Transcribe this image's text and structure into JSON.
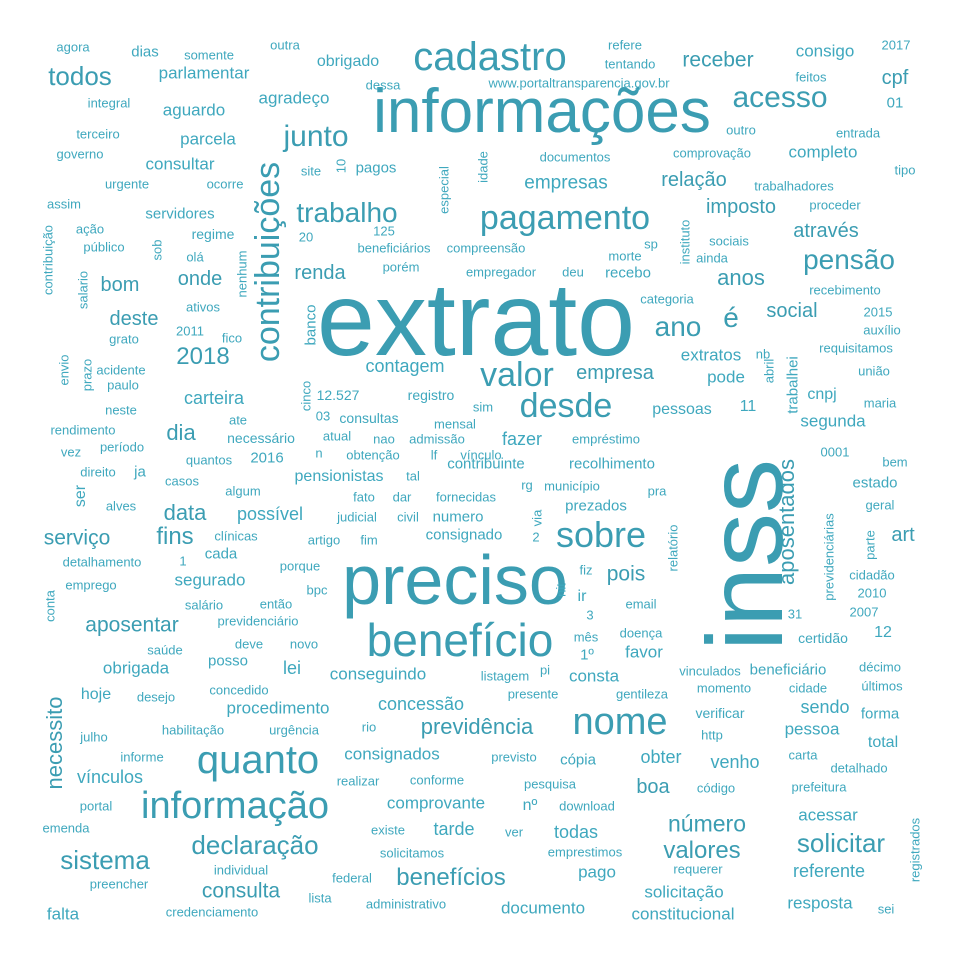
{
  "colors": {
    "light": "#3FA8BE",
    "dark": "#3B9DB2"
  },
  "words": [
    {
      "text": "extrato",
      "weight": 100
    },
    {
      "text": "inss",
      "weight": 90
    },
    {
      "text": "preciso",
      "weight": 70
    },
    {
      "text": "informações",
      "weight": 60
    },
    {
      "text": "benefício",
      "weight": 45
    },
    {
      "text": "cadastro",
      "weight": 40
    },
    {
      "text": "informação",
      "weight": 38
    },
    {
      "text": "quanto",
      "weight": 38
    },
    {
      "text": "nome",
      "weight": 36
    },
    {
      "text": "contribuições",
      "weight": 34
    },
    {
      "text": "pagamento",
      "weight": 33
    },
    {
      "text": "sobre",
      "weight": 33
    },
    {
      "text": "desde",
      "weight": 30
    },
    {
      "text": "valor",
      "weight": 30
    },
    {
      "text": "acesso",
      "weight": 29
    },
    {
      "text": "junto",
      "weight": 28
    },
    {
      "text": "trabalho",
      "weight": 27
    },
    {
      "text": "pensão",
      "weight": 27
    },
    {
      "text": "ano",
      "weight": 27
    },
    {
      "text": "todos",
      "weight": 25
    },
    {
      "text": "solicitar",
      "weight": 25
    },
    {
      "text": "declaração",
      "weight": 24
    },
    {
      "text": "sistema",
      "weight": 23
    },
    {
      "text": "valores",
      "weight": 23
    },
    {
      "text": "número",
      "weight": 22
    },
    {
      "text": "benefícios",
      "weight": 22
    },
    {
      "text": "previdência",
      "weight": 21
    },
    {
      "text": "aposentados",
      "weight": 20
    },
    {
      "text": "necessito",
      "weight": 20
    },
    {
      "text": "receber",
      "weight": 20
    },
    {
      "text": "é",
      "weight": 27
    },
    {
      "text": "2018",
      "weight": 22
    },
    {
      "text": "dia",
      "weight": 20
    },
    {
      "text": "data",
      "weight": 20
    },
    {
      "text": "fins",
      "weight": 20
    },
    {
      "text": "serviço",
      "weight": 18
    },
    {
      "text": "aposentar",
      "weight": 18
    },
    {
      "text": "pois",
      "weight": 18
    },
    {
      "text": "consulta",
      "weight": 18
    },
    {
      "text": "imposto",
      "weight": 17
    },
    {
      "text": "relação",
      "weight": 17
    },
    {
      "text": "empresas",
      "weight": 16
    },
    {
      "text": "empresa",
      "weight": 16
    },
    {
      "text": "renda",
      "weight": 16
    },
    {
      "text": "anos",
      "weight": 18
    },
    {
      "text": "social",
      "weight": 16
    },
    {
      "text": "através",
      "weight": 16
    },
    {
      "text": "onde",
      "weight": 16
    },
    {
      "text": "bom",
      "weight": 16
    },
    {
      "text": "deste",
      "weight": 16
    },
    {
      "text": "carteira",
      "weight": 15
    },
    {
      "text": "contagem",
      "weight": 15
    },
    {
      "text": "fazer",
      "weight": 15
    },
    {
      "text": "possível",
      "weight": 14
    },
    {
      "text": "segunda",
      "weight": 14
    },
    {
      "text": "extratos",
      "weight": 14
    },
    {
      "text": "pode",
      "weight": 14
    },
    {
      "text": "cpf",
      "weight": 16
    },
    {
      "text": "agradeço",
      "weight": 14
    },
    {
      "text": "obrigado",
      "weight": 13
    },
    {
      "text": "aguardo",
      "weight": 14
    },
    {
      "text": "parcela",
      "weight": 14
    },
    {
      "text": "consultar",
      "weight": 14
    },
    {
      "text": "parlamentar",
      "weight": 14
    },
    {
      "text": "consigo",
      "weight": 14
    },
    {
      "text": "completo",
      "weight": 14
    },
    {
      "text": "segurado",
      "weight": 14
    },
    {
      "text": "concessão",
      "weight": 15
    },
    {
      "text": "procedimento",
      "weight": 14
    },
    {
      "text": "conseguindo",
      "weight": 14
    },
    {
      "text": "lei",
      "weight": 15
    },
    {
      "text": "consta",
      "weight": 14
    },
    {
      "text": "favor",
      "weight": 14
    },
    {
      "text": "sendo",
      "weight": 15
    },
    {
      "text": "pessoa",
      "weight": 14
    },
    {
      "text": "obter",
      "weight": 15
    },
    {
      "text": "venho",
      "weight": 15
    },
    {
      "text": "boa",
      "weight": 16
    },
    {
      "text": "vínculos",
      "weight": 15
    },
    {
      "text": "comprovante",
      "weight": 14
    },
    {
      "text": "tarde",
      "weight": 15
    },
    {
      "text": "todas",
      "weight": 15
    },
    {
      "text": "referente",
      "weight": 15
    },
    {
      "text": "consignados",
      "weight": 14
    },
    {
      "text": "acessar",
      "weight": 14
    },
    {
      "text": "pago",
      "weight": 14
    },
    {
      "text": "solicitação",
      "weight": 14
    },
    {
      "text": "documento",
      "weight": 14
    },
    {
      "text": "constitucional",
      "weight": 14
    },
    {
      "text": "resposta",
      "weight": 14
    },
    {
      "text": "falta",
      "weight": 14
    },
    {
      "text": "art",
      "weight": 15
    },
    {
      "text": "obrigada",
      "weight": 14
    },
    {
      "text": "hoje",
      "weight": 14
    },
    {
      "text": "posso",
      "weight": 13
    },
    {
      "text": "ir",
      "weight": 14
    },
    {
      "text": "contribuinte",
      "weight": 12
    },
    {
      "text": "recolhimento",
      "weight": 12
    },
    {
      "text": "numero",
      "weight": 12
    },
    {
      "text": "consignado",
      "weight": 12
    },
    {
      "text": "prezados",
      "weight": 12
    },
    {
      "text": "pensionistas",
      "weight": 13
    },
    {
      "text": "necessário",
      "weight": 12
    },
    {
      "text": "2016",
      "weight": 12
    },
    {
      "text": "11",
      "weight": 13
    },
    {
      "text": "12",
      "weight": 13
    },
    {
      "text": "12.527",
      "weight": 11
    },
    {
      "text": "registro",
      "weight": 11
    },
    {
      "text": "consultas",
      "weight": 11
    },
    {
      "text": "estado",
      "weight": 12
    },
    {
      "text": "cnpj",
      "weight": 13
    },
    {
      "text": "trabalhei",
      "weight": 12
    },
    {
      "text": "pessoas",
      "weight": 13
    },
    {
      "text": "banco",
      "weight": 12
    },
    {
      "text": "beneficiário",
      "weight": 12
    },
    {
      "text": "verificar",
      "weight": 12
    },
    {
      "text": "forma",
      "weight": 12
    },
    {
      "text": "total",
      "weight": 12
    },
    {
      "text": "cópia",
      "weight": 12
    },
    {
      "text": "certidão",
      "weight": 12
    },
    {
      "text": "01",
      "weight": 12
    },
    {
      "text": "www.portaltransparencia.gov.br",
      "weight": 10
    },
    {
      "text": "agora",
      "weight": 10
    },
    {
      "text": "dias",
      "weight": 12
    },
    {
      "text": "somente",
      "weight": 10
    },
    {
      "text": "outra",
      "weight": 10
    },
    {
      "text": "dessa",
      "weight": 10
    },
    {
      "text": "refere",
      "weight": 10
    },
    {
      "text": "tentando",
      "weight": 10
    },
    {
      "text": "2017",
      "weight": 10
    },
    {
      "text": "feitos",
      "weight": 10
    },
    {
      "text": "integral",
      "weight": 10
    },
    {
      "text": "terceiro",
      "weight": 10
    },
    {
      "text": "governo",
      "weight": 10
    },
    {
      "text": "urgente",
      "weight": 10
    },
    {
      "text": "ocorre",
      "weight": 10
    },
    {
      "text": "site",
      "weight": 10
    },
    {
      "text": "pagos",
      "weight": 11
    },
    {
      "text": "documentos",
      "weight": 10
    },
    {
      "text": "comprovação",
      "weight": 10
    },
    {
      "text": "tipo",
      "weight": 10
    },
    {
      "text": "outro",
      "weight": 10
    },
    {
      "text": "entrada",
      "weight": 10
    },
    {
      "text": "assim",
      "weight": 10
    },
    {
      "text": "ação",
      "weight": 10
    },
    {
      "text": "público",
      "weight": 10
    },
    {
      "text": "servidores",
      "weight": 12
    },
    {
      "text": "regime",
      "weight": 11
    },
    {
      "text": "olá",
      "weight": 10
    },
    {
      "text": "20",
      "weight": 10
    },
    {
      "text": "beneficiários",
      "weight": 10
    },
    {
      "text": "compreensão",
      "weight": 10
    },
    {
      "text": "sp",
      "weight": 10
    },
    {
      "text": "sociais",
      "weight": 10
    },
    {
      "text": "ainda",
      "weight": 10
    },
    {
      "text": "trabalhadores",
      "weight": 10
    },
    {
      "text": "proceder",
      "weight": 10
    },
    {
      "text": "morte",
      "weight": 10
    },
    {
      "text": "porém",
      "weight": 10
    },
    {
      "text": "empregador",
      "weight": 10
    },
    {
      "text": "deu",
      "weight": 10
    },
    {
      "text": "recebo",
      "weight": 11
    },
    {
      "text": "instituto",
      "weight": 10
    },
    {
      "text": "categoria",
      "weight": 10
    },
    {
      "text": "recebimento",
      "weight": 10
    },
    {
      "text": "2015",
      "weight": 10
    },
    {
      "text": "auxílio",
      "weight": 10
    },
    {
      "text": "requisitamos",
      "weight": 10
    },
    {
      "text": "ativos",
      "weight": 10
    },
    {
      "text": "2011",
      "weight": 10
    },
    {
      "text": "fico",
      "weight": 10
    },
    {
      "text": "grato",
      "weight": 10
    },
    {
      "text": "acidente",
      "weight": 10
    },
    {
      "text": "paulo",
      "weight": 10
    },
    {
      "text": "neste",
      "weight": 10
    },
    {
      "text": "rendimento",
      "weight": 10
    },
    {
      "text": "período",
      "weight": 10
    },
    {
      "text": "vez",
      "weight": 10
    },
    {
      "text": "direito",
      "weight": 10
    },
    {
      "text": "ja",
      "weight": 11
    },
    {
      "text": "casos",
      "weight": 10
    },
    {
      "text": "alves",
      "weight": 10
    },
    {
      "text": "quantos",
      "weight": 10
    },
    {
      "text": "algum",
      "weight": 10
    },
    {
      "text": "ate",
      "weight": 10
    },
    {
      "text": "atual",
      "weight": 10
    },
    {
      "text": "nao",
      "weight": 10
    },
    {
      "text": "admissão",
      "weight": 10
    },
    {
      "text": "empréstimo",
      "weight": 10
    },
    {
      "text": "mensal",
      "weight": 10
    },
    {
      "text": "sim",
      "weight": 10
    },
    {
      "text": "03",
      "weight": 10
    },
    {
      "text": "obtenção",
      "weight": 10
    },
    {
      "text": "tal",
      "weight": 10
    },
    {
      "text": "lf",
      "weight": 10
    },
    {
      "text": "vínculo",
      "weight": 10
    },
    {
      "text": "fato",
      "weight": 10
    },
    {
      "text": "dar",
      "weight": 10
    },
    {
      "text": "fornecidas",
      "weight": 10
    },
    {
      "text": "judicial",
      "weight": 10
    },
    {
      "text": "civil",
      "weight": 10
    },
    {
      "text": "rg",
      "weight": 10
    },
    {
      "text": "município",
      "weight": 10
    },
    {
      "text": "pra",
      "weight": 10
    },
    {
      "text": "geral",
      "weight": 10
    },
    {
      "text": "bem",
      "weight": 10
    },
    {
      "text": "0001",
      "weight": 10
    },
    {
      "text": "maria",
      "weight": 10
    },
    {
      "text": "união",
      "weight": 10
    },
    {
      "text": "clínicas",
      "weight": 10
    },
    {
      "text": "artigo",
      "weight": 10
    },
    {
      "text": "fim",
      "weight": 10
    },
    {
      "text": "cada",
      "weight": 11
    },
    {
      "text": "detalhamento",
      "weight": 10
    },
    {
      "text": "emprego",
      "weight": 10
    },
    {
      "text": "porque",
      "weight": 10
    },
    {
      "text": "bpc",
      "weight": 10
    },
    {
      "text": "salário",
      "weight": 10
    },
    {
      "text": "então",
      "weight": 10
    },
    {
      "text": "previdenciário",
      "weight": 10
    },
    {
      "text": "deve",
      "weight": 10
    },
    {
      "text": "novo",
      "weight": 10
    },
    {
      "text": "saúde",
      "weight": 10
    },
    {
      "text": "mês",
      "weight": 10
    },
    {
      "text": "doença",
      "weight": 10
    },
    {
      "text": "email",
      "weight": 10
    },
    {
      "text": "31",
      "weight": 10
    },
    {
      "text": "2007",
      "weight": 10
    },
    {
      "text": "2010",
      "weight": 10
    },
    {
      "text": "cidadão",
      "weight": 10
    },
    {
      "text": "parte",
      "weight": 10
    },
    {
      "text": "previdenciárias",
      "weight": 10
    },
    {
      "text": "fiz",
      "weight": 10
    },
    {
      "text": "3",
      "weight": 10
    },
    {
      "text": "1º",
      "weight": 12
    },
    {
      "text": "listagem",
      "weight": 10
    },
    {
      "text": "pi",
      "weight": 10
    },
    {
      "text": "vinculados",
      "weight": 10
    },
    {
      "text": "décimo",
      "weight": 10
    },
    {
      "text": "momento",
      "weight": 10
    },
    {
      "text": "cidade",
      "weight": 10
    },
    {
      "text": "últimos",
      "weight": 10
    },
    {
      "text": "gentileza",
      "weight": 10
    },
    {
      "text": "presente",
      "weight": 10
    },
    {
      "text": "concedido",
      "weight": 10
    },
    {
      "text": "desejo",
      "weight": 10
    },
    {
      "text": "habilitação",
      "weight": 10
    },
    {
      "text": "urgência",
      "weight": 10
    },
    {
      "text": "rio",
      "weight": 10
    },
    {
      "text": "julho",
      "weight": 10
    },
    {
      "text": "informe",
      "weight": 10
    },
    {
      "text": "http",
      "weight": 10
    },
    {
      "text": "previsto",
      "weight": 10
    },
    {
      "text": "carta",
      "weight": 10
    },
    {
      "text": "detalhado",
      "weight": 10
    },
    {
      "text": "realizar",
      "weight": 10
    },
    {
      "text": "conforme",
      "weight": 10
    },
    {
      "text": "pesquisa",
      "weight": 10
    },
    {
      "text": "código",
      "weight": 10
    },
    {
      "text": "prefeitura",
      "weight": 10
    },
    {
      "text": "portal",
      "weight": 10
    },
    {
      "text": "emenda",
      "weight": 10
    },
    {
      "text": "existe",
      "weight": 10
    },
    {
      "text": "ver",
      "weight": 10
    },
    {
      "text": "download",
      "weight": 10
    },
    {
      "text": "nº",
      "weight": 12
    },
    {
      "text": "registrados",
      "weight": 10
    },
    {
      "text": "individual",
      "weight": 10
    },
    {
      "text": "solicitamos",
      "weight": 10
    },
    {
      "text": "emprestimos",
      "weight": 10
    },
    {
      "text": "preencher",
      "weight": 10
    },
    {
      "text": "federal",
      "weight": 10
    },
    {
      "text": "requerer",
      "weight": 10
    },
    {
      "text": "lista",
      "weight": 10
    },
    {
      "text": "administrativo",
      "weight": 10
    },
    {
      "text": "credenciamento",
      "weight": 10
    },
    {
      "text": "sei",
      "weight": 10
    },
    {
      "text": "conta",
      "weight": 10
    },
    {
      "text": "especial",
      "weight": 10
    },
    {
      "text": "idade",
      "weight": 10
    },
    {
      "text": "contribuição",
      "weight": 10
    },
    {
      "text": "salario",
      "weight": 10
    },
    {
      "text": "sob",
      "weight": 10
    },
    {
      "text": "nenhum",
      "weight": 10
    },
    {
      "text": "envio",
      "weight": 10
    },
    {
      "text": "prazo",
      "weight": 10
    },
    {
      "text": "cinco",
      "weight": 10
    },
    {
      "text": "abril",
      "weight": 10
    },
    {
      "text": "nb",
      "weight": 10
    },
    {
      "text": "relatório",
      "weight": 10
    },
    {
      "text": "via",
      "weight": 10
    },
    {
      "text": "nit",
      "weight": 10
    },
    {
      "text": "2",
      "weight": 10
    },
    {
      "text": "1",
      "weight": 10
    },
    {
      "text": "10",
      "weight": 10
    },
    {
      "text": "125",
      "weight": 10
    },
    {
      "text": "n",
      "weight": 10
    },
    {
      "text": "ser",
      "weight": 14
    }
  ]
}
